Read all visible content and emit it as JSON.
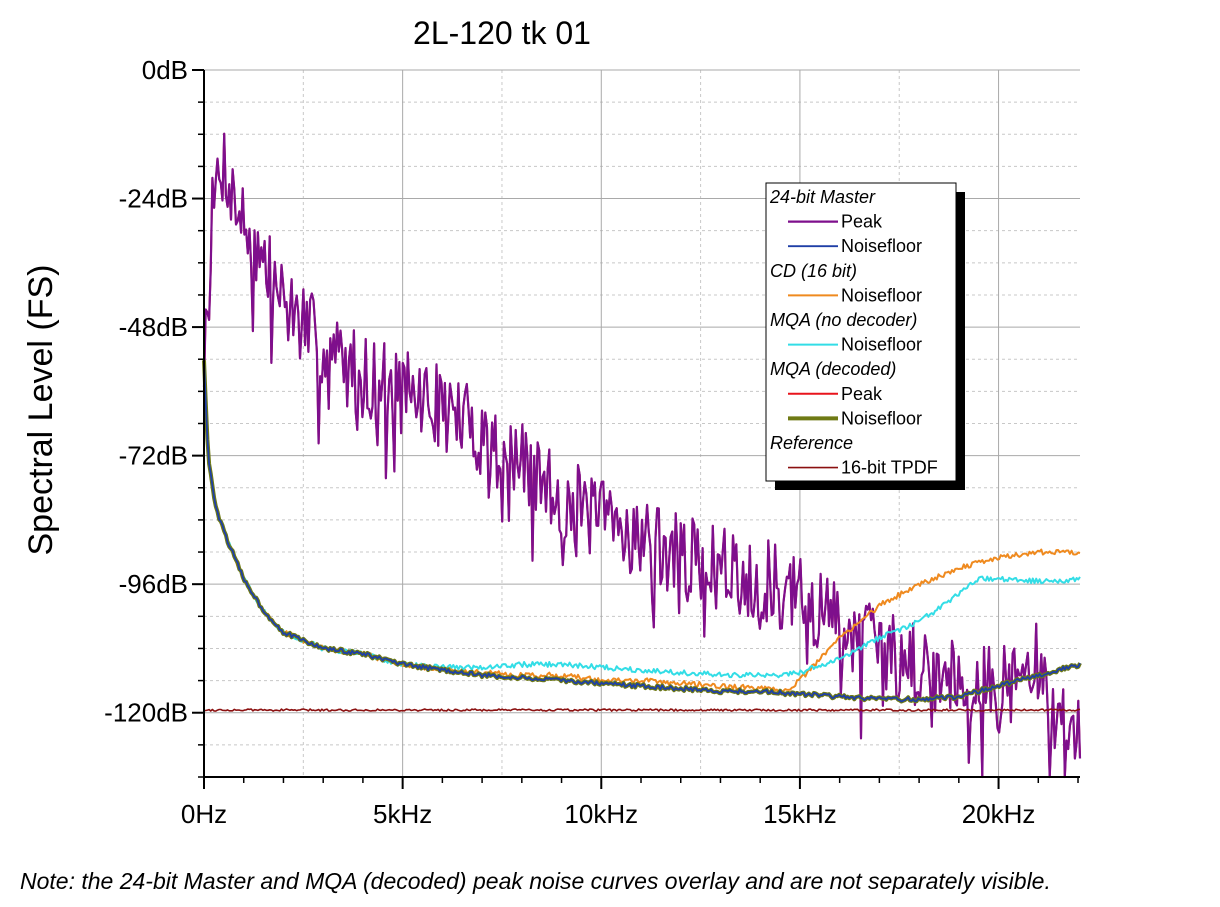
{
  "chart_data": {
    "type": "line",
    "title": "2L-120 tk 01",
    "xlabel": "",
    "ylabel": "Spectral Level (FS)",
    "xlim": [
      0,
      22050
    ],
    "ylim": [
      -132,
      0
    ],
    "x_ticks": [
      {
        "value": 0,
        "label": "0Hz"
      },
      {
        "value": 5000,
        "label": "5kHz"
      },
      {
        "value": 10000,
        "label": "10kHz"
      },
      {
        "value": 15000,
        "label": "15kHz"
      },
      {
        "value": 20000,
        "label": "20kHz"
      }
    ],
    "y_ticks": [
      {
        "value": 0,
        "label": "0dB"
      },
      {
        "value": -24,
        "label": "-24dB"
      },
      {
        "value": -48,
        "label": "-48dB"
      },
      {
        "value": -72,
        "label": "-72dB"
      },
      {
        "value": -96,
        "label": "-96dB"
      },
      {
        "value": -120,
        "label": "-120dB"
      }
    ],
    "grid": true,
    "legend_position": "upper-right",
    "legend": [
      {
        "group": "24-bit Master",
        "entries": [
          {
            "label": "Peak",
            "series": "master_peak"
          },
          {
            "label": "Noisefloor",
            "series": "master_noise"
          }
        ]
      },
      {
        "group": "CD (16 bit)",
        "entries": [
          {
            "label": "Noisefloor",
            "series": "cd_noise"
          }
        ]
      },
      {
        "group": "MQA (no decoder)",
        "entries": [
          {
            "label": "Noisefloor",
            "series": "mqa_nodec_noise"
          }
        ]
      },
      {
        "group": "MQA (decoded)",
        "entries": [
          {
            "label": "Peak",
            "series": "mqa_dec_peak"
          },
          {
            "label": "Noisefloor",
            "series": "mqa_dec_noise"
          }
        ]
      },
      {
        "group": "Reference",
        "entries": [
          {
            "label": "16-bit TPDF",
            "series": "tpdf"
          }
        ]
      }
    ],
    "series": [
      {
        "id": "mqa_dec_peak",
        "name": "MQA (decoded) Peak",
        "color": "#e8141c",
        "width": 2,
        "x": [
          0,
          100,
          300,
          500,
          800,
          1200,
          2000,
          3000,
          4000,
          5000,
          6000,
          7000,
          8000,
          9000,
          10000,
          11000,
          12000,
          13000,
          14000,
          15000,
          16000,
          17000,
          18000,
          19000,
          20000,
          21000,
          21400,
          21800,
          22050
        ],
        "y": [
          -55,
          -35,
          -22,
          -17,
          -25,
          -32,
          -43,
          -52,
          -57,
          -60,
          -63,
          -68,
          -74,
          -80,
          -84,
          -87,
          -91,
          -93,
          -95,
          -99,
          -103,
          -108,
          -111,
          -113,
          -116,
          -111,
          -123,
          -119,
          -127
        ],
        "noise_amp": 8,
        "seed": 7
      },
      {
        "id": "master_peak",
        "name": "24-bit Master Peak",
        "color": "#7e0f8c",
        "width": 2.2,
        "x": [
          0,
          100,
          300,
          500,
          800,
          1200,
          2000,
          3000,
          4000,
          5000,
          6000,
          7000,
          8000,
          9000,
          10000,
          11000,
          12000,
          13000,
          14000,
          15000,
          16000,
          17000,
          18000,
          19000,
          20000,
          21000,
          21400,
          21800,
          22050
        ],
        "y": [
          -55,
          -35,
          -22,
          -17,
          -25,
          -32,
          -43,
          -52,
          -57,
          -60,
          -63,
          -68,
          -74,
          -80,
          -84,
          -87,
          -91,
          -93,
          -95,
          -99,
          -103,
          -108,
          -111,
          -113,
          -116,
          -111,
          -123,
          -119,
          -127
        ],
        "noise_amp": 8,
        "seed": 7
      },
      {
        "id": "cd_noise",
        "name": "CD (16 bit) Noisefloor",
        "color": "#ef8a1f",
        "width": 2,
        "x": [
          0,
          100,
          300,
          600,
          1000,
          1500,
          2000,
          3000,
          4000,
          5000,
          6000,
          7000,
          8000,
          9000,
          10000,
          11000,
          12000,
          13000,
          14000,
          14600,
          15000,
          16000,
          17000,
          18000,
          19000,
          20000,
          21000,
          22050
        ],
        "y": [
          -54,
          -72,
          -82,
          -88,
          -95,
          -101,
          -105,
          -108,
          -109,
          -111,
          -112,
          -112.5,
          -113,
          -113,
          -114,
          -114,
          -114.5,
          -115,
          -115.5,
          -116,
          -114,
          -106,
          -100,
          -96,
          -93,
          -91,
          -90,
          -90
        ],
        "noise_amp": 0.5,
        "seed": 21
      },
      {
        "id": "mqa_nodec_noise",
        "name": "MQA (no decoder) Noisefloor",
        "color": "#33dde6",
        "width": 2,
        "x": [
          0,
          100,
          300,
          600,
          1000,
          1500,
          2000,
          3000,
          4000,
          5000,
          6000,
          7000,
          8000,
          9000,
          10000,
          11000,
          12000,
          13000,
          14000,
          14500,
          15000,
          16000,
          17000,
          18000,
          18800,
          19500,
          20000,
          21000,
          22050
        ],
        "y": [
          -54,
          -72,
          -82,
          -88,
          -95,
          -101,
          -105,
          -108,
          -109,
          -111,
          -111.5,
          -111.5,
          -111,
          -111,
          -111.5,
          -112,
          -112.5,
          -113,
          -113,
          -113,
          -112.5,
          -110,
          -106,
          -103,
          -99,
          -95,
          -95,
          -95.5,
          -95
        ],
        "noise_amp": 0.5,
        "seed": 33
      },
      {
        "id": "mqa_dec_noise",
        "name": "MQA (decoded) Noisefloor",
        "color": "#6f7a14",
        "width": 4,
        "x": [
          0,
          100,
          300,
          600,
          1000,
          1500,
          2000,
          3000,
          4000,
          5000,
          6000,
          7000,
          8000,
          9000,
          10000,
          11000,
          12000,
          13000,
          14000,
          15000,
          16000,
          17000,
          18000,
          19000,
          20000,
          21000,
          21500,
          22050
        ],
        "y": [
          -54,
          -72,
          -82,
          -88,
          -95,
          -101,
          -105,
          -108,
          -109,
          -111,
          -112,
          -113,
          -113.5,
          -114,
          -114.5,
          -115,
          -115.5,
          -116,
          -116,
          -116.5,
          -117,
          -117.5,
          -117.5,
          -117,
          -115,
          -113,
          -112,
          -111
        ],
        "noise_amp": 0.4,
        "seed": 44
      },
      {
        "id": "master_noise",
        "name": "24-bit Master Noisefloor",
        "color": "#1f3fa6",
        "width": 1.8,
        "x": [
          0,
          100,
          300,
          600,
          1000,
          1500,
          2000,
          3000,
          4000,
          5000,
          6000,
          7000,
          8000,
          9000,
          10000,
          11000,
          12000,
          13000,
          14000,
          15000,
          16000,
          17000,
          18000,
          19000,
          20000,
          21000,
          21500,
          22050
        ],
        "y": [
          -54,
          -72,
          -82,
          -88,
          -95,
          -101,
          -105,
          -108,
          -109,
          -111,
          -112,
          -113,
          -113.5,
          -114,
          -114.5,
          -115,
          -115.5,
          -116,
          -116,
          -116.5,
          -117,
          -117.5,
          -117.5,
          -117,
          -115,
          -113,
          -112,
          -111
        ],
        "noise_amp": 0.4,
        "seed": 44
      },
      {
        "id": "tpdf",
        "name": "Reference 16-bit TPDF",
        "color": "#8b1010",
        "width": 1.6,
        "x": [
          0,
          22050
        ],
        "y": [
          -119.5,
          -119.5
        ],
        "noise_amp": 0.2,
        "seed": 55
      }
    ]
  },
  "note": "Note: the 24-bit Master and MQA (decoded) peak noise curves overlay and are not separately visible."
}
